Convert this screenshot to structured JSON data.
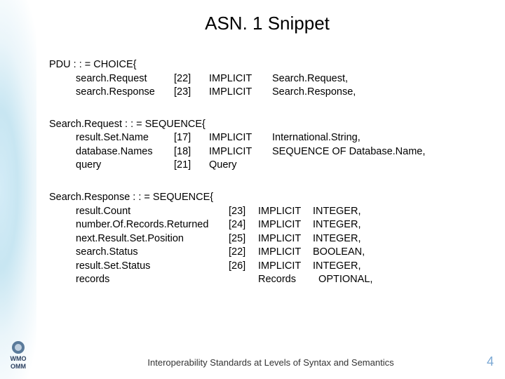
{
  "title": "ASN. 1 Snippet",
  "block1": {
    "header": "PDU : : = CHOICE{",
    "lines": [
      {
        "name": "search.Request",
        "tag": "[22]",
        "kw": "IMPLICIT",
        "type": "Search.Request,"
      },
      {
        "name": "search.Response",
        "tag": "[23]",
        "kw": "IMPLICIT",
        "type": "Search.Response,"
      }
    ],
    "col_name_w": 140,
    "col_tag_w": 50,
    "col_kw_w": 90
  },
  "block2": {
    "header": "Search.Request : : = SEQUENCE{",
    "lines": [
      {
        "name": "result.Set.Name",
        "tag": "[17]",
        "kw": "IMPLICIT",
        "type": "International.String,"
      },
      {
        "name": "database.Names",
        "tag": "[18]",
        "kw": "IMPLICIT",
        "type": "SEQUENCE OF Database.Name,"
      },
      {
        "name": "query",
        "tag": "[21]",
        "kw": "Query",
        "type": ""
      }
    ],
    "col_name_w": 140,
    "col_tag_w": 50,
    "col_kw_w": 90
  },
  "block3": {
    "header": "Search.Response : : = SEQUENCE{",
    "lines": [
      {
        "name": "result.Count",
        "tag": "[23]",
        "kw": "IMPLICIT",
        "type": "INTEGER,"
      },
      {
        "name": "number.Of.Records.Returned",
        "tag": "[24]",
        "kw": "IMPLICIT",
        "type": "INTEGER,"
      },
      {
        "name": "next.Result.Set.Position",
        "tag": "[25]",
        "kw": "IMPLICIT",
        "type": "INTEGER,"
      },
      {
        "name": "search.Status",
        "tag": "[22]",
        "kw": "IMPLICIT",
        "type": "BOOLEAN,"
      },
      {
        "name": "result.Set.Status",
        "tag": "[26]",
        "kw": "IMPLICIT",
        "type": "INTEGER,"
      },
      {
        "name": "records",
        "tag": "",
        "kw": "Records",
        "type": "  OPTIONAL,"
      }
    ],
    "col_name_w": 218,
    "col_tag_w": 42,
    "col_kw_w": 78
  },
  "footer": "Interoperability Standards at Levels of Syntax and Semantics",
  "page_number": "4",
  "logo": {
    "line1": "WMO",
    "line2": "OMM"
  },
  "colors": {
    "title": "#000000",
    "text": "#000000",
    "pagenum": "#7aa8d4",
    "sidebar_inner": "#c8e6f2"
  }
}
